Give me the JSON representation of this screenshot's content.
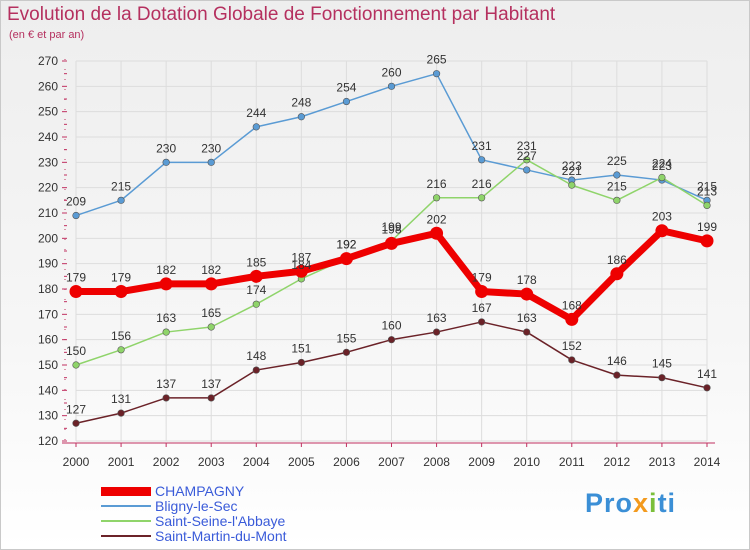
{
  "chart_data": {
    "type": "line",
    "title": "Evolution de la Dotation Globale de Fonctionnement par Habitant",
    "subtitle": "(en € et par an)",
    "xlabel": "",
    "ylabel": "",
    "x": [
      "2000",
      "2001",
      "2002",
      "2003",
      "2004",
      "2005",
      "2006",
      "2007",
      "2008",
      "2009",
      "2010",
      "2011",
      "2012",
      "2013",
      "2014"
    ],
    "ylim": [
      120,
      270
    ],
    "yticks": [
      120,
      130,
      140,
      150,
      160,
      170,
      180,
      190,
      200,
      210,
      220,
      230,
      240,
      250,
      260,
      270
    ],
    "series": [
      {
        "name": "CHAMPAGNY",
        "color": "#ee0000",
        "values": [
          179,
          179,
          182,
          182,
          185,
          187,
          192,
          198,
          202,
          179,
          178,
          168,
          186,
          203,
          199
        ]
      },
      {
        "name": "Bligny-le-Sec",
        "color": "#5a9bd4",
        "values": [
          209,
          215,
          230,
          230,
          244,
          248,
          254,
          260,
          265,
          231,
          227,
          223,
          225,
          223,
          215
        ]
      },
      {
        "name": "Saint-Seine-l'Abbaye",
        "color": "#8fd46a",
        "values": [
          150,
          156,
          163,
          165,
          174,
          184,
          192,
          199,
          216,
          216,
          231,
          221,
          215,
          224,
          213
        ]
      },
      {
        "name": "Saint-Martin-du-Mont",
        "color": "#6b2228",
        "values": [
          127,
          131,
          137,
          137,
          148,
          151,
          155,
          160,
          163,
          167,
          163,
          152,
          146,
          145,
          141
        ]
      }
    ]
  },
  "logo": {
    "p1": "Pro",
    "p2": "x",
    "p3": "i",
    "p4": "ti"
  }
}
